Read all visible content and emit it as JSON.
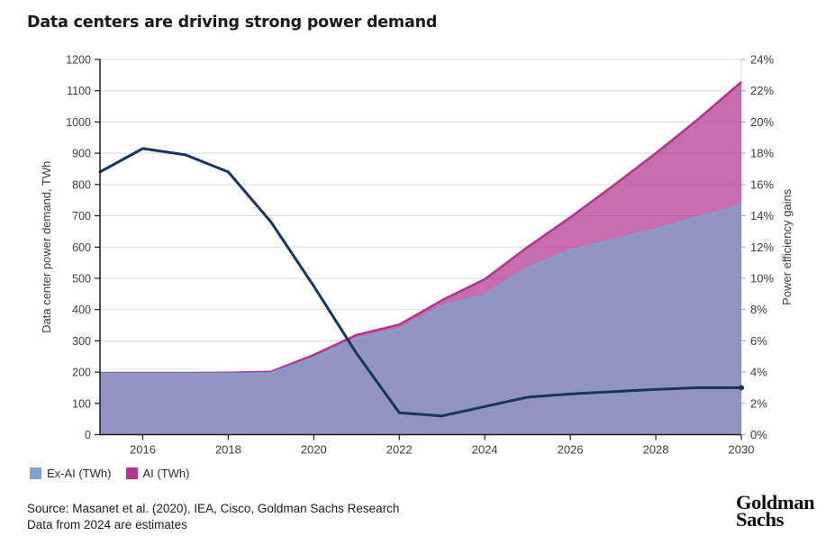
{
  "title": "Data centers are driving strong power demand",
  "chart_data": {
    "type": "area",
    "title": "Data centers are driving strong power demand",
    "x": [
      2015,
      2016,
      2017,
      2018,
      2019,
      2020,
      2021,
      2022,
      2023,
      2024,
      2025,
      2026,
      2027,
      2028,
      2029,
      2030
    ],
    "series": [
      {
        "name": "Ex-AI (TWh)",
        "type": "area",
        "axis": "left",
        "fill": "rgba(125,162,204,0.70)",
        "edge": "#7da2cc",
        "values": [
          195,
          195,
          195,
          195,
          197,
          247,
          308,
          338,
          412,
          447,
          534,
          590,
          624,
          658,
          696,
          734
        ]
      },
      {
        "name": "AI (TWh)",
        "type": "area-stacked",
        "axis": "left",
        "fill": "rgba(178,54,143,0.72)",
        "edge": "#b0348c",
        "values": [
          2,
          2,
          2,
          3,
          4,
          8,
          11,
          14,
          18,
          50,
          66,
          105,
          172,
          242,
          314,
          394
        ]
      },
      {
        "name": "Power efficiency gains",
        "type": "line",
        "axis": "right",
        "color": "#17365d",
        "values": [
          16.8,
          18.3,
          17.9,
          16.8,
          13.6,
          9.5,
          5.2,
          1.4,
          1.2,
          1.8,
          2.4,
          2.6,
          2.75,
          2.9,
          3.0,
          3.0
        ]
      }
    ],
    "left_axis": {
      "label": "Data center power demand, TWh",
      "min": 0,
      "max": 1200,
      "step": 100
    },
    "right_axis": {
      "label": "Power efficiency gains",
      "min": 0,
      "max": 24,
      "step": 2,
      "unit": "%"
    },
    "x_axis": {
      "ticks": [
        2016,
        2018,
        2020,
        2022,
        2024,
        2026,
        2028,
        2030
      ]
    },
    "grid": true,
    "legend_position": "bottom-left",
    "colors": {
      "grid": "#d9d9d9",
      "axis": "#1a1a1a",
      "tick_text": "#3d3d3d"
    }
  },
  "legend": {
    "items": [
      {
        "label": "Ex-AI (TWh)",
        "color": "#7da2cc"
      },
      {
        "label": "AI (TWh)",
        "color": "#b2368f"
      }
    ]
  },
  "footer": {
    "source_line1": "Source: Masanet et al. (2020), IEA, Cisco, Goldman Sachs Research",
    "source_line2": "Data from 2024 are estimates",
    "logo_line1": "Goldman",
    "logo_line2": "Sachs"
  }
}
